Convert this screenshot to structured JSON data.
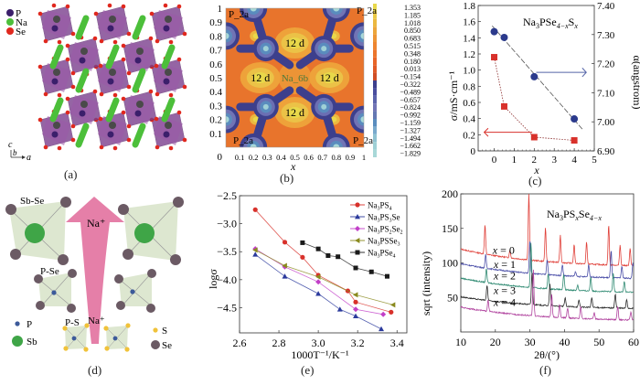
{
  "panels": {
    "a": {
      "label": "(a)",
      "legend": [
        {
          "name": "P",
          "color": "#3b1f6b"
        },
        {
          "name": "Na",
          "color": "#4cbf3a"
        },
        {
          "name": "Se",
          "color": "#e0281e"
        }
      ],
      "axes": {
        "c": "c",
        "b": "b",
        "a": "a"
      }
    },
    "b": {
      "label": "(b)",
      "xlabel": "x",
      "x_ticks": [
        "0.1",
        "0.2",
        "0.3",
        "0.4",
        "0.5",
        "0.6",
        "0.7",
        "0.8",
        "0.9",
        "1"
      ],
      "y_ticks": [
        "1",
        "0.9",
        "0.8",
        "0.7",
        "0.6",
        "0.5",
        "0.4",
        "0.3",
        "0.2",
        "0.1",
        "0"
      ],
      "site_labels": {
        "corner": "P_2a",
        "d12": "12 d",
        "center": "Na_6b"
      },
      "colorbar": [
        "1.353",
        "1.185",
        "1.018",
        "0.850",
        "0.683",
        "0.515",
        "0.348",
        "0.180",
        "0.013",
        "−0.154",
        "−0.322",
        "−0.489",
        "−0.657",
        "−0.824",
        "−0.992",
        "−1.159",
        "−1.327",
        "−1.494",
        "−1.662",
        "−1.829"
      ],
      "colorbar_colors": [
        "#e8d84a",
        "#e9c845",
        "#ebb840",
        "#eca53a",
        "#ed9535",
        "#ee8530",
        "#ec752c",
        "#e86528",
        "#e05a26",
        "#d04e25",
        "#3d3f8c",
        "#4a4e9e",
        "#5b63ab",
        "#7174b5",
        "#6478b3",
        "#5a8cbe",
        "#79a9cc",
        "#8fc2d2",
        "#9fd0d6",
        "#a8d8d8"
      ]
    },
    "c": {
      "label": "(c)",
      "title_main": "Na",
      "title_parts": [
        {
          "t": "Na",
          "s": ""
        },
        {
          "t": "3",
          "s": "sub"
        },
        {
          "t": "PSe",
          "s": ""
        },
        {
          "t": "4−x",
          "s": "sub"
        },
        {
          "t": "S",
          "s": ""
        },
        {
          "t": "x",
          "s": "sub"
        }
      ]
    },
    "d": {
      "label": "(d)",
      "labels": {
        "sbse": "Sb-Se",
        "pse": "P-Se",
        "ps": "P-S",
        "na_top": "Na⁺",
        "na_bottom": "Na⁺"
      },
      "legend": [
        {
          "name": "P",
          "color": "#3c5a9a"
        },
        {
          "name": "Sb",
          "color": "#3fa547"
        },
        {
          "name": "S",
          "color": "#f0c23a"
        },
        {
          "name": "Se",
          "color": "#6b5a64"
        }
      ]
    },
    "e": {
      "label": "(e)"
    },
    "f": {
      "label": "(f)"
    }
  },
  "chart_data": [
    {
      "panel": "c",
      "type": "scatter",
      "title": "Na3PSe4−xSx",
      "xlabel": "x",
      "ylabel": "σ/mS·cm⁻¹",
      "ylabel_right": "α(angstrom)",
      "xlim": [
        -0.8,
        5
      ],
      "ylim": [
        0,
        1.8
      ],
      "ylim_right": [
        6.9,
        7.4
      ],
      "x_ticks": [
        0,
        1,
        2,
        3,
        4,
        5
      ],
      "y_ticks": [
        0,
        0.2,
        0.4,
        0.6,
        0.8,
        1.0,
        1.2,
        1.4,
        1.6,
        1.8
      ],
      "y_tick_labels": [
        "0",
        "0.2",
        "0.4",
        "0.6",
        "0.8",
        "1.0",
        "1.2",
        "1.4",
        "1.6",
        "1.8"
      ],
      "y_ticks_right": [
        6.9,
        7.0,
        7.1,
        7.2,
        7.3,
        7.4
      ],
      "y_tick_labels_right": [
        "6.90",
        "7.00",
        "7.10",
        "7.20",
        "7.30",
        "7.40"
      ],
      "series": [
        {
          "name": "σ (conductivity)",
          "axis": "left",
          "color": "#d8312b",
          "marker": "square",
          "x": [
            0,
            0.5,
            2,
            4
          ],
          "y": [
            1.16,
            0.55,
            0.17,
            0.13
          ]
        },
        {
          "name": "a (lattice parameter)",
          "axis": "right",
          "color": "#2b3a8c",
          "marker": "circle",
          "x": [
            0,
            0.5,
            2,
            4
          ],
          "y": [
            7.31,
            7.29,
            7.155,
            7.01
          ]
        }
      ],
      "fit_line": {
        "axis": "right",
        "x": [
          -0.1,
          4.4
        ],
        "y": [
          7.33,
          6.975
        ]
      },
      "arrows": [
        {
          "direction": "right",
          "color": "#5565a8"
        },
        {
          "direction": "left",
          "color": "#d8312b"
        }
      ]
    },
    {
      "panel": "e",
      "type": "line",
      "xlabel": "1000T⁻¹/K⁻¹",
      "ylabel": "logσ",
      "xlim": [
        2.6,
        3.45
      ],
      "ylim": [
        -4.95,
        -2.5
      ],
      "x_ticks": [
        2.6,
        2.8,
        3.0,
        3.2,
        3.4
      ],
      "x_tick_labels": [
        "2.6",
        "2.8",
        "3.0",
        "3.2",
        "3.4"
      ],
      "y_ticks": [
        -2.5,
        -3.0,
        -3.5,
        -4.0,
        -4.5
      ],
      "y_tick_labels": [
        "−2.5",
        "−3.0",
        "−3.5",
        "−4.0",
        "−4.5"
      ],
      "legend_position": "top-right",
      "series": [
        {
          "name": "Na3PS4",
          "label_parts": [
            [
              "Na",
              ""
            ],
            [
              "3",
              "sub"
            ],
            [
              "PS",
              ""
            ],
            [
              "4",
              "sub"
            ]
          ],
          "color": "#d8312b",
          "marker": "circle",
          "x": [
            2.68,
            2.83,
            2.92,
            3.0,
            3.15,
            3.19,
            3.37
          ],
          "y": [
            -2.75,
            -3.33,
            -3.6,
            -3.92,
            -4.2,
            -4.4,
            -4.58
          ]
        },
        {
          "name": "Na3PS3Se",
          "label_parts": [
            [
              "Na",
              ""
            ],
            [
              "3",
              "sub"
            ],
            [
              "PS",
              ""
            ],
            [
              "3",
              "sub"
            ],
            [
              "Se",
              ""
            ]
          ],
          "color": "#2b3a9c",
          "marker": "triangle",
          "x": [
            2.68,
            2.83,
            3.0,
            3.11,
            3.19,
            3.32
          ],
          "y": [
            -3.55,
            -3.94,
            -4.25,
            -4.53,
            -4.65,
            -4.88
          ]
        },
        {
          "name": "Na3PS2Se2",
          "label_parts": [
            [
              "Na",
              ""
            ],
            [
              "3",
              "sub"
            ],
            [
              "PS",
              ""
            ],
            [
              "2",
              "sub"
            ],
            [
              "Se",
              ""
            ],
            [
              "2",
              "sub"
            ]
          ],
          "color": "#c23fc8",
          "marker": "diamond",
          "x": [
            2.68,
            2.83,
            3.0,
            3.19,
            3.33
          ],
          "y": [
            -3.45,
            -3.77,
            -4.04,
            -4.53,
            -4.62
          ]
        },
        {
          "name": "Na3PSSe3",
          "label_parts": [
            [
              "Na",
              ""
            ],
            [
              "3",
              "sub"
            ],
            [
              "PSSe",
              ""
            ],
            [
              "3",
              "sub"
            ]
          ],
          "color": "#8a8a1e",
          "marker": "triangle-left",
          "x": [
            2.68,
            2.83,
            3.0,
            3.19,
            3.38
          ],
          "y": [
            -3.47,
            -3.75,
            -3.95,
            -4.27,
            -4.45
          ]
        },
        {
          "name": "Na3PSe4",
          "label_parts": [
            [
              "Na",
              ""
            ],
            [
              "3",
              "sub"
            ],
            [
              "PSe",
              ""
            ],
            [
              "4",
              "sub"
            ]
          ],
          "color": "#1a1a1a",
          "marker": "square",
          "x": [
            2.92,
            3.0,
            3.05,
            3.1,
            3.19,
            3.27,
            3.35
          ],
          "y": [
            -3.34,
            -3.45,
            -3.57,
            -3.59,
            -3.79,
            -3.86,
            -3.94
          ]
        }
      ]
    },
    {
      "panel": "f",
      "type": "line",
      "title_parts": [
        [
          "Na",
          ""
        ],
        [
          "3",
          "sub"
        ],
        [
          "PS",
          ""
        ],
        [
          "x",
          "sub"
        ],
        [
          "Se",
          ""
        ],
        [
          "4−x",
          "sub"
        ]
      ],
      "xlabel": "2θ/(°)",
      "ylabel": "sqrt (intensity)",
      "xlim": [
        10,
        60
      ],
      "ylim": [
        0,
        200
      ],
      "x_ticks": [
        10,
        20,
        30,
        40,
        50,
        60
      ],
      "y_ticks": [
        50,
        100,
        150,
        200
      ],
      "series": [
        {
          "name": "x = 0",
          "color": "#e0413a",
          "baseline_start": 120,
          "baseline_end": 93,
          "peaks": [
            [
              17.0,
              155
            ],
            [
              24.2,
              118
            ],
            [
              29.7,
              200
            ],
            [
              34.5,
              150
            ],
            [
              38.8,
              140
            ],
            [
              42.8,
              126
            ],
            [
              46.4,
              130
            ],
            [
              52.8,
              155
            ],
            [
              56.1,
              126
            ],
            [
              59.0,
              121
            ]
          ]
        },
        {
          "name": "x = 1",
          "color": "#4b4fa8",
          "baseline_start": 99,
          "baseline_end": 75,
          "peaks": [
            [
              17.2,
              112
            ],
            [
              30.0,
              133
            ],
            [
              35.0,
              105
            ],
            [
              39.4,
              98
            ],
            [
              43.2,
              87
            ],
            [
              47.0,
              98
            ],
            [
              53.5,
              118
            ],
            [
              56.6,
              95
            ],
            [
              59.8,
              100
            ]
          ]
        },
        {
          "name": "x = 2",
          "color": "#2f8a72",
          "baseline_start": 78,
          "baseline_end": 55,
          "peaks": [
            [
              17.4,
              91
            ],
            [
              30.3,
              130
            ],
            [
              35.3,
              85
            ],
            [
              39.8,
              83
            ],
            [
              43.8,
              68
            ],
            [
              47.6,
              80
            ],
            [
              54.1,
              85
            ],
            [
              57.3,
              73
            ]
          ]
        },
        {
          "name": "x = 3",
          "color": "#2a2a2a",
          "baseline_start": 51,
          "baseline_end": 32,
          "peaks": [
            [
              17.6,
              68
            ],
            [
              30.6,
              86
            ],
            [
              35.8,
              69
            ],
            [
              40.2,
              49
            ],
            [
              44.2,
              46
            ],
            [
              47.9,
              50
            ],
            [
              54.7,
              55
            ],
            [
              58.0,
              47
            ]
          ]
        },
        {
          "name": "x = 4",
          "color": "#b0439e",
          "baseline_start": 36,
          "baseline_end": 15,
          "peaks": [
            [
              17.9,
              47
            ],
            [
              31.0,
              90
            ],
            [
              36.3,
              54
            ],
            [
              38.6,
              40
            ],
            [
              40.9,
              35
            ],
            [
              44.7,
              37
            ],
            [
              48.6,
              28
            ],
            [
              55.4,
              38
            ],
            [
              59.2,
              29
            ]
          ]
        }
      ]
    }
  ]
}
